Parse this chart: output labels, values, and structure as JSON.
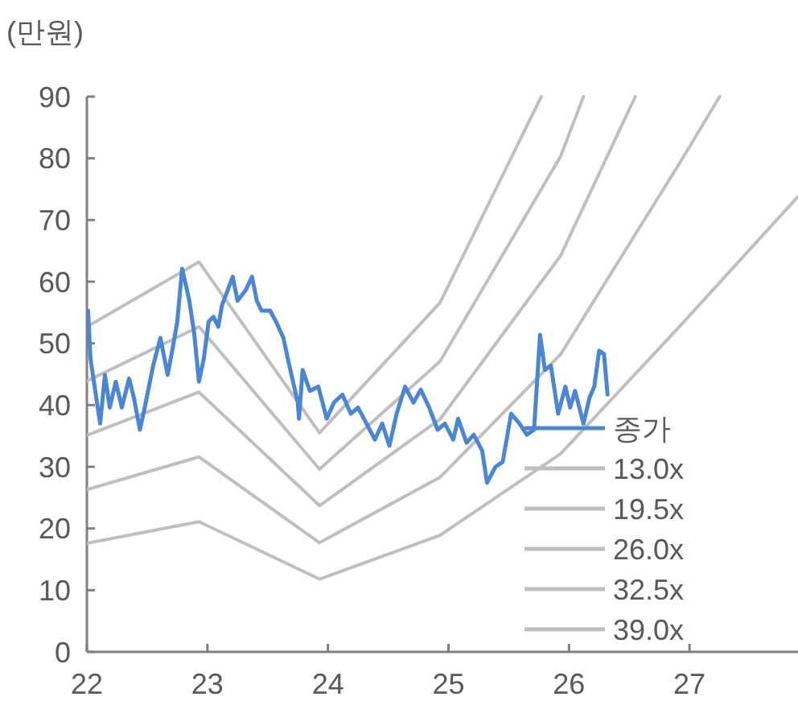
{
  "chart_data": {
    "type": "line",
    "ylabel": "(만원)",
    "xlim": [
      22,
      27.9
    ],
    "xticks": [
      22,
      23,
      24,
      25,
      26,
      27
    ],
    "ylim": [
      0,
      90
    ],
    "yticks": [
      0,
      10,
      20,
      30,
      40,
      50,
      60,
      70,
      80,
      90
    ],
    "grid": false,
    "legend": "bottom right",
    "marker": "none",
    "line_style": "solid",
    "series": [
      {
        "name": "종가",
        "color": "#4a86d4",
        "x": [
          22.01,
          22.03,
          22.05,
          22.11,
          22.15,
          22.19,
          22.24,
          22.29,
          22.35,
          22.39,
          22.44,
          22.48,
          22.55,
          22.61,
          22.67,
          22.71,
          22.75,
          22.79,
          22.83,
          22.85,
          22.89,
          22.93,
          22.97,
          23.01,
          23.05,
          23.09,
          23.12,
          23.17,
          23.21,
          23.25,
          23.32,
          23.37,
          23.41,
          23.45,
          23.52,
          23.57,
          23.63,
          23.68,
          23.75,
          23.76,
          23.79,
          23.85,
          23.92,
          23.99,
          24.05,
          24.12,
          24.19,
          24.25,
          24.32,
          24.39,
          24.45,
          24.51,
          24.57,
          24.64,
          24.71,
          24.77,
          24.84,
          24.91,
          24.97,
          25.04,
          25.08,
          25.15,
          25.21,
          25.28,
          25.32,
          25.39,
          25.45,
          25.52,
          25.59,
          25.65,
          25.71,
          25.76,
          25.8,
          25.85,
          25.91,
          25.97,
          26.01,
          26.05,
          26.12,
          26.17,
          26.21,
          26.25,
          26.29,
          26.32
        ],
        "values": [
          55.3,
          47.5,
          44.9,
          37.0,
          44.9,
          39.6,
          43.8,
          39.6,
          44.3,
          41.2,
          36.0,
          39.6,
          46.4,
          50.9,
          44.9,
          49.0,
          53.5,
          62.1,
          58.7,
          56.9,
          51.7,
          43.8,
          47.5,
          53.5,
          54.3,
          52.7,
          56.1,
          58.7,
          60.8,
          56.9,
          58.7,
          60.8,
          56.9,
          55.3,
          55.3,
          53.5,
          50.9,
          46.4,
          40.4,
          37.8,
          45.7,
          42.3,
          43.0,
          37.8,
          40.4,
          41.7,
          38.6,
          39.6,
          37.0,
          34.4,
          37.0,
          33.4,
          38.6,
          43.0,
          40.4,
          42.5,
          39.6,
          36.0,
          37.0,
          34.4,
          37.8,
          33.9,
          35.2,
          32.6,
          27.4,
          30.0,
          30.8,
          38.6,
          37.0,
          35.2,
          36.0,
          51.4,
          45.7,
          46.4,
          38.6,
          43.0,
          39.6,
          42.3,
          37.0,
          41.2,
          43.0,
          48.8,
          48.3,
          41.7
        ]
      },
      {
        "name": "13.0x",
        "color": "#bfbfbf",
        "x": [
          22,
          22.93,
          23.93,
          24.93,
          25.93,
          26.93,
          27.9
        ],
        "values": [
          17.6,
          21.1,
          11.8,
          18.9,
          32.1,
          53.0,
          73.8
        ]
      },
      {
        "name": "19.5x",
        "color": "#bfbfbf",
        "x": [
          22,
          22.93,
          23.93,
          24.93,
          25.93,
          26.93,
          27.25
        ],
        "values": [
          26.3,
          31.6,
          17.7,
          28.3,
          48.2,
          79.6,
          90
        ]
      },
      {
        "name": "26.0x",
        "color": "#bfbfbf",
        "x": [
          22,
          22.93,
          23.93,
          24.93,
          25.93,
          26.55
        ],
        "values": [
          35.1,
          42.1,
          23.7,
          37.7,
          64.2,
          90
        ]
      },
      {
        "name": "32.5x",
        "color": "#bfbfbf",
        "x": [
          22,
          22.93,
          23.93,
          24.93,
          25.93,
          26.12
        ],
        "values": [
          43.9,
          52.7,
          29.6,
          47.1,
          80.3,
          90
        ]
      },
      {
        "name": "39.0x",
        "color": "#bfbfbf",
        "x": [
          22,
          22.93,
          23.93,
          24.93,
          25.77
        ],
        "values": [
          52.7,
          63.2,
          35.5,
          56.6,
          90
        ]
      }
    ]
  }
}
